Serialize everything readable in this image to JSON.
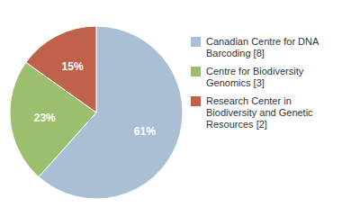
{
  "chart_data": {
    "type": "pie",
    "categories": [
      "Canadian Centre for DNA\nBarcoding [8]",
      "Centre for Biodiversity\nGenomics [3]",
      "Research Center in\nBiodiversity and Genetic\nResources [2]"
    ],
    "values": [
      61,
      23,
      15
    ],
    "value_labels": [
      "61%",
      "23%",
      "15%"
    ],
    "colors": [
      "#a8bfd4",
      "#9bbf6e",
      "#c0614a"
    ],
    "data_labels": true,
    "legend": "right"
  }
}
